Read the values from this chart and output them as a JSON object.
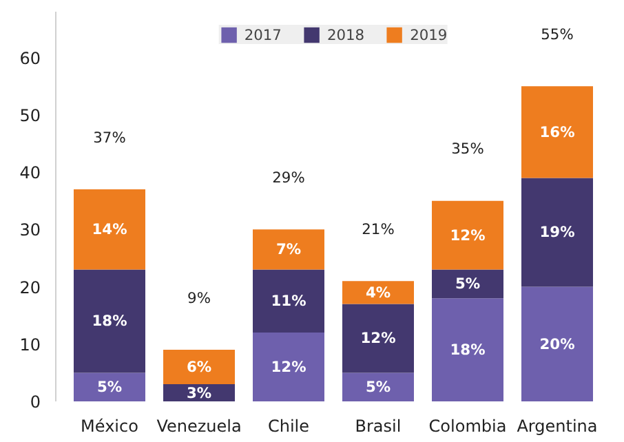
{
  "chart_data": {
    "type": "bar",
    "stacked": true,
    "categories": [
      "México",
      "Venezuela",
      "Chile",
      "Brasil",
      "Colombia",
      "Argentina"
    ],
    "series": [
      {
        "name": "2017",
        "color": "#6e60ad",
        "values": [
          5,
          null,
          12,
          5,
          18,
          20
        ],
        "value_labels": [
          "5%",
          null,
          "12%",
          "5%",
          "18%",
          "20%"
        ]
      },
      {
        "name": "2018",
        "color": "#43386f",
        "values": [
          18,
          3,
          11,
          12,
          5,
          19
        ],
        "value_labels": [
          "18%",
          "3%",
          "11%",
          "12%",
          "5%",
          "19%"
        ]
      },
      {
        "name": "2019",
        "color": "#ee7d1f",
        "values": [
          14,
          6,
          7,
          4,
          12,
          16
        ],
        "value_labels": [
          "14%",
          "6%",
          "7%",
          "4%",
          "12%",
          "16%"
        ]
      }
    ],
    "totals": [
      "37%",
      "9%",
      "29%",
      "21%",
      "35%",
      "55%"
    ],
    "ylim": [
      0,
      68
    ],
    "yticks": [
      0,
      10,
      20,
      30,
      40,
      50,
      60
    ],
    "grid": false,
    "legend": "top"
  }
}
